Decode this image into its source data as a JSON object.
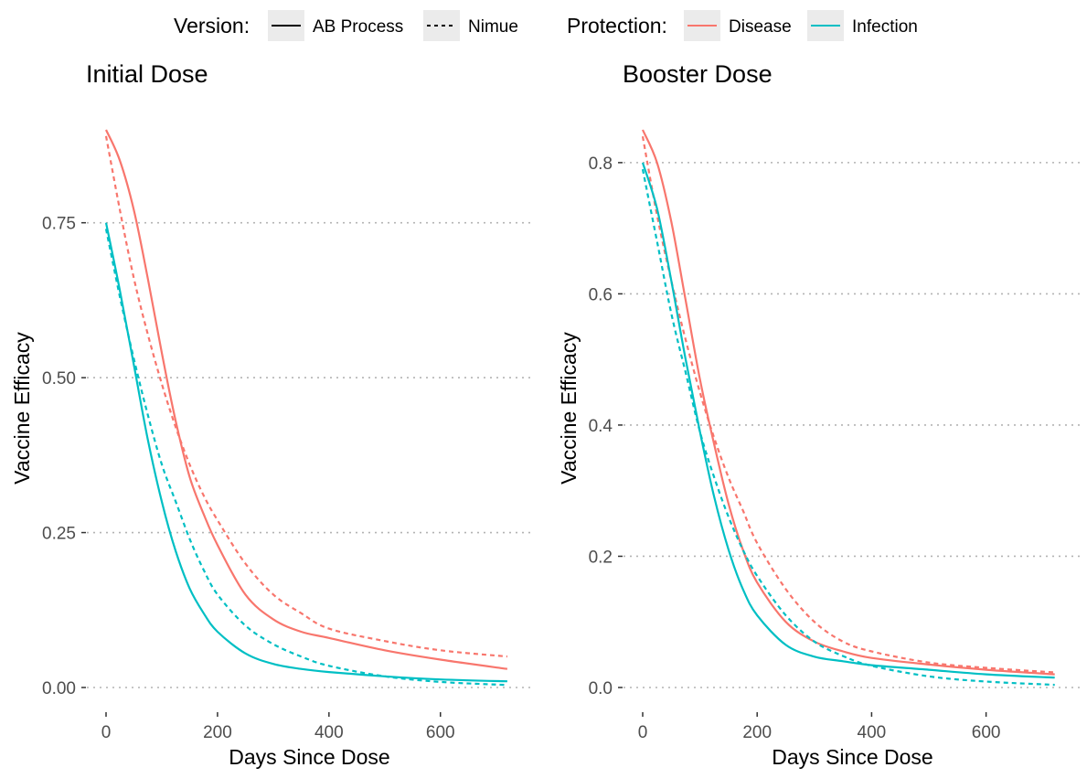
{
  "legend": {
    "version_title": "Version:",
    "protection_title": "Protection:",
    "version_items": [
      {
        "label": "AB Process",
        "dash": "solid"
      },
      {
        "label": "Nimue",
        "dash": "dotted"
      }
    ],
    "protection_items": [
      {
        "label": "Disease",
        "color": "#F8766D"
      },
      {
        "label": "Infection",
        "color": "#00BFC4"
      }
    ],
    "placement": "top"
  },
  "chart_data": [
    {
      "type": "line",
      "title": "Initial Dose",
      "xlabel": "Days Since Dose",
      "ylabel": "Vaccine Efficacy",
      "xlim": [
        0,
        730
      ],
      "ylim": [
        0,
        0.9
      ],
      "xticks": [
        0,
        200,
        400,
        600
      ],
      "xtick_labels": [
        "0",
        "200",
        "400",
        "600"
      ],
      "yticks": [
        0,
        0.25,
        0.5,
        0.75
      ],
      "ytick_labels": [
        "0.00",
        "0.25",
        "0.50",
        "0.75"
      ],
      "grid": "horizontal dotted",
      "x": [
        0,
        25,
        50,
        75,
        100,
        125,
        150,
        175,
        200,
        250,
        300,
        350,
        400,
        500,
        600,
        720
      ],
      "series": [
        {
          "protection": "Disease",
          "version": "AB Process",
          "values": [
            0.9,
            0.85,
            0.77,
            0.66,
            0.54,
            0.43,
            0.34,
            0.28,
            0.23,
            0.15,
            0.11,
            0.09,
            0.08,
            0.06,
            0.045,
            0.03
          ]
        },
        {
          "protection": "Disease",
          "version": "Nimue",
          "values": [
            0.89,
            0.77,
            0.66,
            0.57,
            0.49,
            0.42,
            0.36,
            0.31,
            0.27,
            0.2,
            0.15,
            0.12,
            0.095,
            0.075,
            0.06,
            0.05
          ]
        },
        {
          "protection": "Infection",
          "version": "AB Process",
          "values": [
            0.75,
            0.64,
            0.52,
            0.4,
            0.3,
            0.22,
            0.16,
            0.12,
            0.09,
            0.055,
            0.038,
            0.03,
            0.025,
            0.018,
            0.013,
            0.01
          ]
        },
        {
          "protection": "Infection",
          "version": "Nimue",
          "values": [
            0.74,
            0.63,
            0.53,
            0.44,
            0.36,
            0.3,
            0.24,
            0.19,
            0.15,
            0.1,
            0.07,
            0.05,
            0.035,
            0.018,
            0.009,
            0.004
          ]
        }
      ]
    },
    {
      "type": "line",
      "title": "Booster Dose",
      "xlabel": "Days Since Dose",
      "ylabel": "Vaccine Efficacy",
      "xlim": [
        0,
        730
      ],
      "ylim": [
        0,
        0.85
      ],
      "xticks": [
        0,
        200,
        400,
        600
      ],
      "xtick_labels": [
        "0",
        "200",
        "400",
        "600"
      ],
      "yticks": [
        0,
        0.2,
        0.4,
        0.6,
        0.8
      ],
      "ytick_labels": [
        "0.0",
        "0.2",
        "0.4",
        "0.6",
        "0.8"
      ],
      "grid": "horizontal dotted",
      "x": [
        0,
        25,
        50,
        75,
        100,
        125,
        150,
        175,
        200,
        250,
        300,
        350,
        400,
        500,
        600,
        720
      ],
      "series": [
        {
          "protection": "Disease",
          "version": "AB Process",
          "values": [
            0.85,
            0.8,
            0.71,
            0.59,
            0.47,
            0.37,
            0.28,
            0.21,
            0.16,
            0.1,
            0.07,
            0.055,
            0.045,
            0.035,
            0.027,
            0.02
          ]
        },
        {
          "protection": "Disease",
          "version": "Nimue",
          "values": [
            0.84,
            0.72,
            0.62,
            0.53,
            0.45,
            0.38,
            0.32,
            0.27,
            0.22,
            0.15,
            0.1,
            0.07,
            0.055,
            0.038,
            0.03,
            0.023
          ]
        },
        {
          "protection": "Infection",
          "version": "AB Process",
          "values": [
            0.8,
            0.73,
            0.62,
            0.5,
            0.39,
            0.29,
            0.21,
            0.15,
            0.11,
            0.065,
            0.047,
            0.04,
            0.034,
            0.027,
            0.02,
            0.015
          ]
        },
        {
          "protection": "Infection",
          "version": "Nimue",
          "values": [
            0.79,
            0.68,
            0.57,
            0.48,
            0.39,
            0.32,
            0.26,
            0.21,
            0.17,
            0.11,
            0.07,
            0.048,
            0.033,
            0.017,
            0.009,
            0.004
          ]
        }
      ]
    }
  ]
}
